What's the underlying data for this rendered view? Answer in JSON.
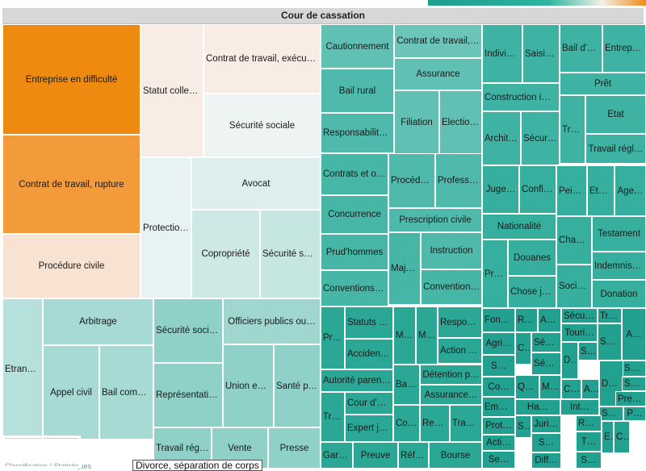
{
  "title": "Cour de cassation",
  "footnote": "Classification / Statistiques",
  "tooltip": "Divorce, séparation de corps",
  "colors": {
    "orange_dark": "#ef8a10",
    "orange": "#f39a3a",
    "orange_pale": "#f8e3d2",
    "cream": "#f8ece4",
    "teal_pale": "#e7f3f2",
    "teal_light": "#b6e0dc",
    "teal_mid": "#8fd0c8",
    "teal": "#3eb3a3",
    "teal_dark": "#1f9d8d"
  },
  "chart_data": {
    "type": "treemap",
    "title": "Cour de cassation",
    "cells": [
      {
        "label": "Entreprise en difficulté",
        "color": "#ef8a10"
      },
      {
        "label": "Contrat de travail, rupture",
        "color": "#f39a3a"
      },
      {
        "label": "Procédure civile",
        "color": "#f8e3d2"
      },
      {
        "label": "Statut collect…",
        "color": "#f8ece4"
      },
      {
        "label": "Contrat de travail, exécution",
        "color": "#f8ece4"
      },
      {
        "label": "Sécurité sociale",
        "color": "#eef4f3"
      },
      {
        "label": "Protectio…",
        "color": "#e7f3f2"
      },
      {
        "label": "Avocat",
        "color": "#dcefed"
      },
      {
        "label": "Copropriété",
        "color": "#cde8e5"
      },
      {
        "label": "Sécurité so…",
        "color": "#c6e6e2"
      },
      {
        "label": "Etranger",
        "color": "#b6e0dc"
      },
      {
        "label": "Arbitrage",
        "color": "#a7dad5"
      },
      {
        "label": "Appel civil",
        "color": "#a7dad5"
      },
      {
        "label": "Bail comm…",
        "color": "#a7dad5"
      },
      {
        "label": "Sécurité socia…",
        "color": "#8fd0c8"
      },
      {
        "label": "Représentatio…",
        "color": "#8fd0c8"
      },
      {
        "label": "Officiers publics ou…",
        "color": "#9fd6cf"
      },
      {
        "label": "Union eur…",
        "color": "#8fd0c8"
      },
      {
        "label": "Santé pu…",
        "color": "#8fd0c8"
      },
      {
        "label": "Travail régl…",
        "color": "#8fd0c8"
      },
      {
        "label": "Vente",
        "color": "#8fd0c8"
      },
      {
        "label": "Presse",
        "color": "#8fd0c8"
      },
      {
        "label": "Cautionnement",
        "color": "#5fc0b3"
      },
      {
        "label": "Contrat de travail,…",
        "color": "#6cc5b9"
      },
      {
        "label": "Assurance",
        "color": "#5fc0b3"
      },
      {
        "label": "Bail rural",
        "color": "#4fb9ab"
      },
      {
        "label": "Filiation",
        "color": "#5fc0b3"
      },
      {
        "label": "Election…",
        "color": "#5fc0b3"
      },
      {
        "label": "Responsabilité…",
        "color": "#4fb9ab"
      },
      {
        "label": "Contrats et ob…",
        "color": "#46b6a7"
      },
      {
        "label": "Procédu…",
        "color": "#4fb9ab"
      },
      {
        "label": "Professi…",
        "color": "#4fb9ab"
      },
      {
        "label": "Concurrence",
        "color": "#46b6a7"
      },
      {
        "label": "Prescription civile",
        "color": "#4fb9ab"
      },
      {
        "label": "Prud'hommes",
        "color": "#46b6a7"
      },
      {
        "label": "Maje…",
        "color": "#46b6a7"
      },
      {
        "label": "Instruction",
        "color": "#4fb9ab"
      },
      {
        "label": "Conventions i…",
        "color": "#46b6a7"
      },
      {
        "label": "Convention…",
        "color": "#46b6a7"
      },
      {
        "label": "Indivision",
        "color": "#3eb3a3"
      },
      {
        "label": "Saisie…",
        "color": "#3eb3a3"
      },
      {
        "label": "Bail d'h…",
        "color": "#3eb3a3"
      },
      {
        "label": "Entrepri…",
        "color": "#3eb3a3"
      },
      {
        "label": "Prêt",
        "color": "#3eb3a3"
      },
      {
        "label": "Construction im…",
        "color": "#3eb3a3"
      },
      {
        "label": "Etat",
        "color": "#3eb3a3"
      },
      {
        "label": "Trav…",
        "color": "#3eb3a3"
      },
      {
        "label": "Archite…",
        "color": "#3eb3a3"
      },
      {
        "label": "Sécurit…",
        "color": "#3eb3a3"
      },
      {
        "label": "Travail régl…",
        "color": "#3eb3a3"
      },
      {
        "label": "Juge…",
        "color": "#36af9f"
      },
      {
        "label": "Conflit…",
        "color": "#36af9f"
      },
      {
        "label": "Peines",
        "color": "#36af9f"
      },
      {
        "label": "Etat…",
        "color": "#36af9f"
      },
      {
        "label": "Age…",
        "color": "#36af9f"
      },
      {
        "label": "Nationalité",
        "color": "#36af9f"
      },
      {
        "label": "Testament",
        "color": "#36af9f"
      },
      {
        "label": "Cham…",
        "color": "#36af9f"
      },
      {
        "label": "Douanes",
        "color": "#36af9f"
      },
      {
        "label": "Indemnisa…",
        "color": "#36af9f"
      },
      {
        "label": "Pro…",
        "color": "#36af9f"
      },
      {
        "label": "Chose ju…",
        "color": "#36af9f"
      },
      {
        "label": "Sociét…",
        "color": "#36af9f"
      },
      {
        "label": "Donation",
        "color": "#36af9f"
      },
      {
        "label": "Pro…",
        "color": "#2ba796"
      },
      {
        "label": "Statuts p…",
        "color": "#2ba796"
      },
      {
        "label": "Mi…",
        "color": "#2ba796"
      },
      {
        "label": "Me…",
        "color": "#2ba796"
      },
      {
        "label": "Respon…",
        "color": "#2ba796"
      },
      {
        "label": "Accident…",
        "color": "#2ba796"
      },
      {
        "label": "Action ci…",
        "color": "#2ba796"
      },
      {
        "label": "Autorité parent…",
        "color": "#2ba796"
      },
      {
        "label": "Bail (…",
        "color": "#2ba796"
      },
      {
        "label": "Détention p…",
        "color": "#2ba796"
      },
      {
        "label": "Assurance…",
        "color": "#2ba796"
      },
      {
        "label": "Tra…",
        "color": "#2ba796"
      },
      {
        "label": "Cour d'a…",
        "color": "#2ba796"
      },
      {
        "label": "Expert ju…",
        "color": "#2ba796"
      },
      {
        "label": "Cont…",
        "color": "#2ba796"
      },
      {
        "label": "Res…",
        "color": "#2ba796"
      },
      {
        "label": "Tran…",
        "color": "#2ba796"
      },
      {
        "label": "Gard…",
        "color": "#2ba796"
      },
      {
        "label": "Preuve",
        "color": "#2ba796"
      },
      {
        "label": "Référé",
        "color": "#2ba796"
      },
      {
        "label": "Bourse",
        "color": "#2ba796"
      },
      {
        "label": "Fond…",
        "color": "#22a090"
      },
      {
        "label": "Re…",
        "color": "#22a090"
      },
      {
        "label": "As…",
        "color": "#22a090"
      },
      {
        "label": "Sécur…",
        "color": "#22a090"
      },
      {
        "label": "Tra…",
        "color": "#22a090"
      },
      {
        "label": "Agri…",
        "color": "#22a090"
      },
      {
        "label": "Touri…",
        "color": "#22a090"
      },
      {
        "label": "Circu…",
        "color": "#22a090"
      },
      {
        "label": "Sécur…",
        "color": "#22a090"
      },
      {
        "label": "Sociét…",
        "color": "#22a090"
      },
      {
        "label": "A…",
        "color": "#22a090"
      },
      {
        "label": "S…",
        "color": "#22a090"
      },
      {
        "label": "Sécu…",
        "color": "#22a090"
      },
      {
        "label": "Droit…",
        "color": "#22a090"
      },
      {
        "label": "S…",
        "color": "#22a090"
      },
      {
        "label": "Servit…",
        "color": "#22a090"
      },
      {
        "label": "Co…",
        "color": "#22a090"
      },
      {
        "label": "Qu…",
        "color": "#22a090"
      },
      {
        "label": "M…",
        "color": "#22a090"
      },
      {
        "label": "Co…",
        "color": "#22a090"
      },
      {
        "label": "Astr…",
        "color": "#22a090"
      },
      {
        "label": "Don…",
        "color": "#22a090"
      },
      {
        "label": "Socié…",
        "color": "#22a090"
      },
      {
        "label": "Prescript…",
        "color": "#22a090"
      },
      {
        "label": "Emploi",
        "color": "#22a090"
      },
      {
        "label": "Ha…",
        "color": "#22a090"
      },
      {
        "label": "Int…",
        "color": "#22a090"
      },
      {
        "label": "Socié…",
        "color": "#22a090"
      },
      {
        "label": "P…",
        "color": "#22a090"
      },
      {
        "label": "Prot…",
        "color": "#22a090"
      },
      {
        "label": "So…",
        "color": "#22a090"
      },
      {
        "label": "Juridi…",
        "color": "#22a090"
      },
      {
        "label": "Réc…",
        "color": "#22a090"
      },
      {
        "label": "Acti…",
        "color": "#22a090"
      },
      {
        "label": "S…",
        "color": "#22a090"
      },
      {
        "label": "T…",
        "color": "#22a090"
      },
      {
        "label": "Effe…",
        "color": "#22a090"
      },
      {
        "label": "Cour…",
        "color": "#22a090"
      },
      {
        "label": "Se…",
        "color": "#22a090"
      },
      {
        "label": "Diff…",
        "color": "#22a090"
      },
      {
        "label": "S…",
        "color": "#22a090"
      }
    ]
  }
}
